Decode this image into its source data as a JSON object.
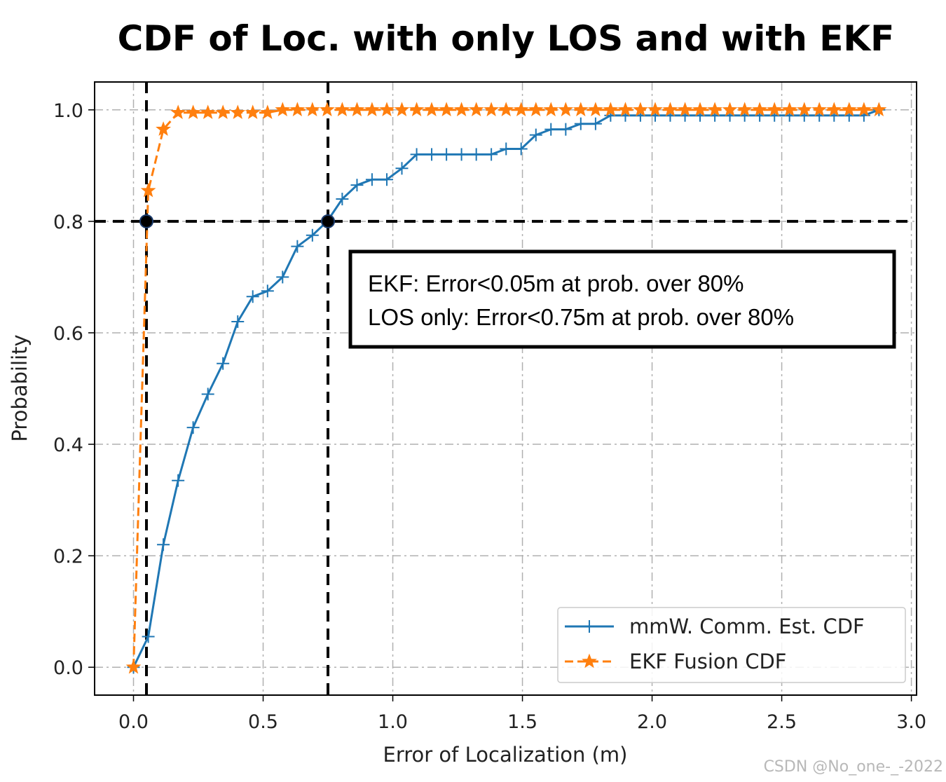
{
  "chart_data": {
    "type": "line",
    "title": "CDF of Loc. with only LOS and with EKF",
    "xlabel": "Error of Localization (m)",
    "ylabel": "Probability",
    "xlim": [
      -0.15,
      3.02
    ],
    "ylim": [
      -0.05,
      1.05
    ],
    "xticks": [
      0.0,
      0.5,
      1.0,
      1.5,
      2.0,
      2.5,
      3.0
    ],
    "xtick_labels": [
      "0.0",
      "0.5",
      "1.0",
      "1.5",
      "2.0",
      "2.5",
      "3.0"
    ],
    "yticks": [
      0.0,
      0.2,
      0.4,
      0.6,
      0.8,
      1.0
    ],
    "ytick_labels": [
      "0.0",
      "0.2",
      "0.4",
      "0.6",
      "0.8",
      "1.0"
    ],
    "grid": true,
    "legend_position": "lower-right",
    "series": [
      {
        "name": "mmW. Comm. Est. CDF",
        "color": "#1f77b4",
        "line_style": "solid",
        "marker": "plus",
        "x": [
          0.0,
          0.057,
          0.115,
          0.172,
          0.23,
          0.287,
          0.345,
          0.402,
          0.46,
          0.517,
          0.575,
          0.632,
          0.69,
          0.747,
          0.805,
          0.862,
          0.92,
          0.977,
          1.035,
          1.092,
          1.15,
          1.207,
          1.265,
          1.322,
          1.38,
          1.437,
          1.495,
          1.552,
          1.61,
          1.667,
          1.725,
          1.782,
          1.84,
          1.897,
          1.955,
          2.012,
          2.07,
          2.127,
          2.185,
          2.242,
          2.3,
          2.357,
          2.415,
          2.472,
          2.53,
          2.587,
          2.645,
          2.702,
          2.76,
          2.817,
          2.875
        ],
        "y": [
          0.0,
          0.055,
          0.22,
          0.335,
          0.43,
          0.49,
          0.545,
          0.62,
          0.665,
          0.675,
          0.7,
          0.755,
          0.775,
          0.8,
          0.84,
          0.865,
          0.875,
          0.875,
          0.895,
          0.92,
          0.92,
          0.92,
          0.92,
          0.92,
          0.92,
          0.93,
          0.93,
          0.955,
          0.965,
          0.965,
          0.975,
          0.975,
          0.99,
          0.99,
          0.99,
          0.99,
          0.99,
          0.99,
          0.99,
          0.99,
          0.99,
          0.99,
          0.99,
          0.99,
          0.99,
          0.99,
          0.99,
          0.99,
          0.99,
          0.99,
          1.0
        ]
      },
      {
        "name": "EKF Fusion CDF",
        "color": "#ff7f0e",
        "line_style": "dashed",
        "marker": "star",
        "x": [
          0.0,
          0.057,
          0.115,
          0.172,
          0.23,
          0.287,
          0.345,
          0.402,
          0.46,
          0.517,
          0.575,
          0.632,
          0.69,
          0.747,
          0.805,
          0.862,
          0.92,
          0.977,
          1.035,
          1.092,
          1.15,
          1.207,
          1.265,
          1.322,
          1.38,
          1.437,
          1.495,
          1.552,
          1.61,
          1.667,
          1.725,
          1.782,
          1.84,
          1.897,
          1.955,
          2.012,
          2.07,
          2.127,
          2.185,
          2.242,
          2.3,
          2.357,
          2.415,
          2.472,
          2.53,
          2.587,
          2.645,
          2.702,
          2.76,
          2.817,
          2.875
        ],
        "y": [
          0.0,
          0.855,
          0.965,
          0.995,
          0.995,
          0.995,
          0.995,
          0.995,
          0.995,
          0.995,
          1.0,
          1.0,
          1.0,
          1.0,
          1.0,
          1.0,
          1.0,
          1.0,
          1.0,
          1.0,
          1.0,
          1.0,
          1.0,
          1.0,
          1.0,
          1.0,
          1.0,
          1.0,
          1.0,
          1.0,
          1.0,
          1.0,
          1.0,
          1.0,
          1.0,
          1.0,
          1.0,
          1.0,
          1.0,
          1.0,
          1.0,
          1.0,
          1.0,
          1.0,
          1.0,
          1.0,
          1.0,
          1.0,
          1.0,
          1.0,
          1.0
        ]
      }
    ],
    "reference_lines": {
      "vertical": [
        0.05,
        0.75
      ],
      "horizontal": [
        0.8
      ],
      "color": "#000000",
      "line_style": "dashed"
    },
    "highlight_points": [
      {
        "x": 0.05,
        "y": 0.8
      },
      {
        "x": 0.75,
        "y": 0.8
      }
    ],
    "annotation_lines": [
      "EKF: Error<0.05m at prob. over 80%",
      "LOS only: Error<0.75m at prob. over 80%"
    ]
  },
  "watermark": "CSDN @No_one-_-2022",
  "colors": {
    "grid": "#b0b0b0",
    "axes": "#000000"
  }
}
